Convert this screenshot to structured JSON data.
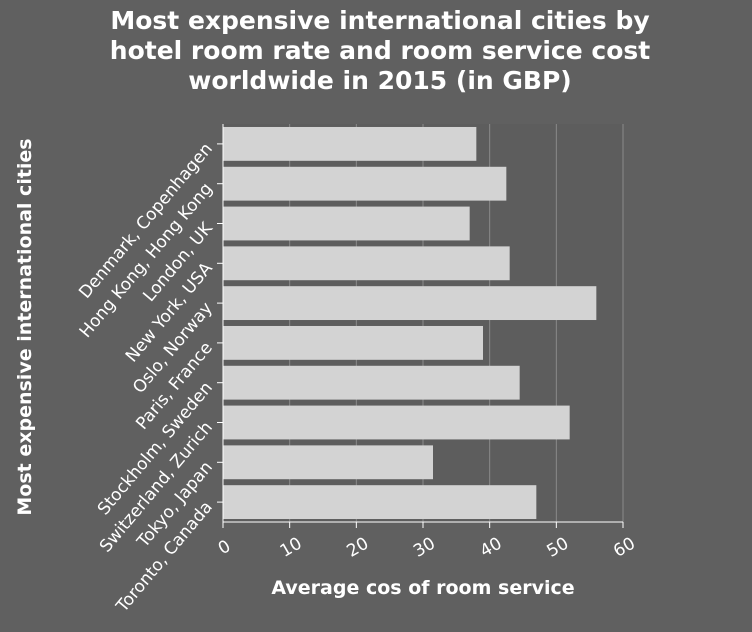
{
  "chart_data": {
    "type": "bar",
    "orientation": "horizontal",
    "title": "Most expensive international cities by hotel room rate and room service cost worldwide in 2015 (in GBP)",
    "xlabel": "Average cos of room service",
    "ylabel": "Most expensive international cities",
    "categories": [
      "Denmark, Copenhagen",
      "Hong Kong, Hong Kong",
      "London, UK",
      "New York, USA",
      "Oslo, Norway",
      "Paris, France",
      "Stockholm, Sweden",
      "Switzerland, Zurich",
      "Tokyo, Japan",
      "Toronto, Canada"
    ],
    "values": [
      38,
      42.5,
      37,
      43,
      56,
      39,
      44.5,
      52,
      31.5,
      47
    ],
    "xlim": [
      0,
      60
    ],
    "xticks": [
      0,
      10,
      20,
      30,
      40,
      50,
      60
    ],
    "grid": true,
    "colors": {
      "background": "#606060",
      "plot_area": "#5d5d5d",
      "bar": "#d3d3d3",
      "grid": "#8a8a8a",
      "axis": "#ffffff"
    }
  }
}
